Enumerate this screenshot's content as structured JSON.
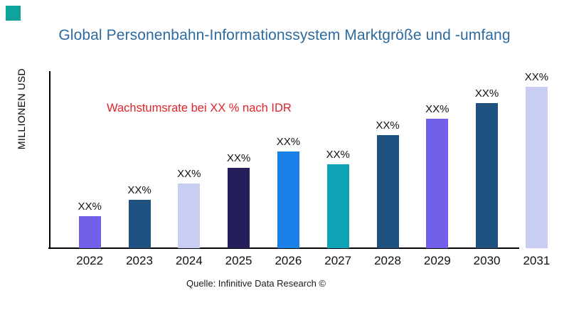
{
  "brand": {
    "logo_color": "#10A39B"
  },
  "header": {
    "title": "Global Personenbahn-Informationssystem Marktgröße und -umfang",
    "title_color": "#2D6A9F"
  },
  "chart": {
    "y_axis_label": "MILLIONEN USD",
    "annotation": {
      "text": "Wachstumsrate bei XX % nach IDR",
      "color": "#E1242A"
    },
    "source": "Quelle: Infinitive Data Research ©"
  },
  "chart_data": {
    "type": "bar",
    "title": "Global Personenbahn-Informationssystem Marktgröße und -umfang",
    "xlabel": "",
    "ylabel": "MILLIONEN USD",
    "categories": [
      "2022",
      "2023",
      "2024",
      "2025",
      "2026",
      "2027",
      "2028",
      "2029",
      "2030",
      "2031"
    ],
    "values": [
      20,
      30,
      40,
      50,
      60,
      52,
      70,
      80,
      90,
      100
    ],
    "value_labels": [
      "XX%",
      "XX%",
      "XX%",
      "XX%",
      "XX%",
      "XX%",
      "XX%",
      "XX%",
      "XX%",
      "XX%"
    ],
    "bar_colors": [
      "#7160EA",
      "#1F5180",
      "#C9CDF2",
      "#241E5A",
      "#1B80E8",
      "#10A3B5",
      "#1F5180",
      "#7160EA",
      "#1F5180",
      "#C9CDF2"
    ],
    "ylim": [
      0,
      100
    ],
    "grid": false,
    "legend": "none",
    "annotation": "Wachstumsrate bei XX % nach IDR",
    "source": "Quelle: Infinitive Data Research ©"
  }
}
